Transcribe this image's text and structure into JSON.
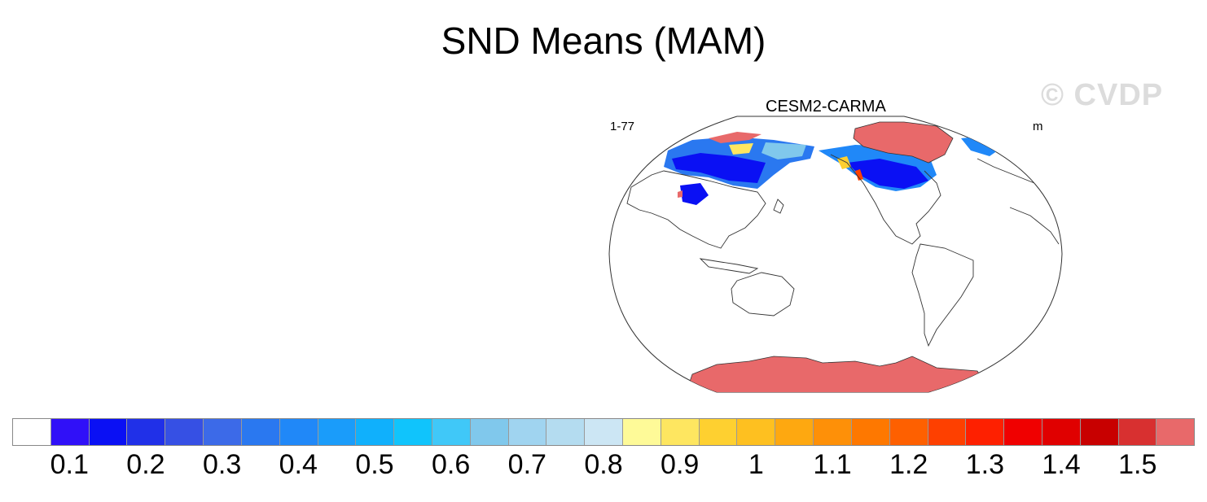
{
  "title": "SND Means (MAM)",
  "watermark": "© CVDP",
  "panel": {
    "title": "CESM2-CARMA",
    "left_label": "1-77",
    "right_label": "m"
  },
  "colors": {
    "ocean": "#ffffff",
    "coastline": "#333333",
    "antarctica": "#e8696a",
    "greenland": "#e8696a"
  },
  "colorbar": {
    "colors": [
      "#ffffff",
      "#3010f8",
      "#0a10f4",
      "#2030e8",
      "#3650e4",
      "#3c6ae8",
      "#2a78f0",
      "#2088f8",
      "#1a9cfa",
      "#10b0fc",
      "#10c4fc",
      "#40c8f8",
      "#80c8ec",
      "#a0d4f0",
      "#b4dcf0",
      "#cce6f4",
      "#fefa98",
      "#fee660",
      "#fed030",
      "#fec020",
      "#fea810",
      "#fe9008",
      "#fe7800",
      "#fe6000",
      "#fe4000",
      "#fe2000",
      "#f00000",
      "#e00000",
      "#c80000",
      "#d83030",
      "#e8696a"
    ],
    "tick_labels": [
      "0.1",
      "0.2",
      "0.3",
      "0.4",
      "0.5",
      "0.6",
      "0.7",
      "0.8",
      "0.9",
      "1",
      "1.1",
      "1.2",
      "1.3",
      "1.4",
      "1.5"
    ]
  }
}
